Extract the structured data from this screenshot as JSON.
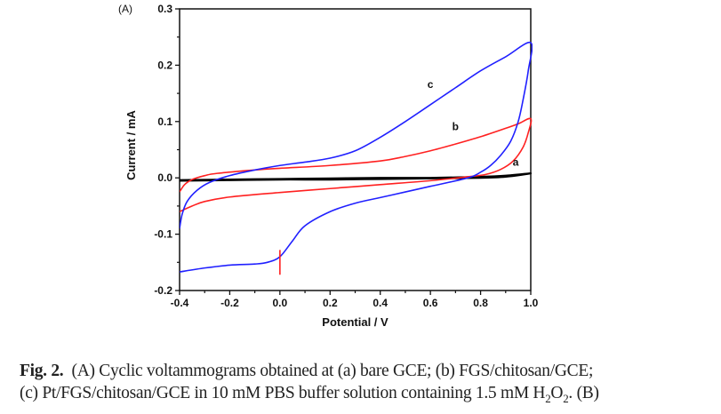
{
  "chart_data": {
    "type": "line",
    "panel_label": "(A)",
    "title": "",
    "xlabel": "Potential / V",
    "ylabel": "Current / mA",
    "xlim": [
      -0.4,
      1.0
    ],
    "ylim": [
      -0.2,
      0.3
    ],
    "xticks": [
      -0.4,
      -0.2,
      0.0,
      0.2,
      0.4,
      0.6,
      0.8,
      1.0
    ],
    "xtick_labels": [
      "-0.4",
      "-0.2",
      "0.0",
      "0.2",
      "0.4",
      "0.6",
      "0.8",
      "1.0"
    ],
    "yticks": [
      -0.2,
      -0.1,
      0.0,
      0.1,
      0.2,
      0.3
    ],
    "ytick_labels": [
      "-0.2",
      "-0.1",
      "0.0",
      "0.1",
      "0.2",
      "0.3"
    ],
    "grid": false,
    "legend": "none",
    "series": [
      {
        "name": "a",
        "label": "a",
        "color": "#000000",
        "label_at": [
          0.94,
          0.022
        ],
        "x": [
          -0.4,
          -0.2,
          0.0,
          0.2,
          0.4,
          0.6,
          0.8,
          0.9,
          1.0,
          0.9,
          0.8,
          0.6,
          0.4,
          0.2,
          0.0,
          -0.2,
          -0.4
        ],
        "y": [
          -0.004,
          -0.003,
          -0.002,
          -0.001,
          0.0,
          0.0,
          0.002,
          0.004,
          0.008,
          0.002,
          0.0,
          -0.001,
          -0.002,
          -0.003,
          -0.003,
          -0.004,
          -0.005
        ]
      },
      {
        "name": "b",
        "label": "b",
        "color": "#ff2020",
        "label_at": [
          0.7,
          0.085
        ],
        "x": [
          -0.4,
          -0.38,
          -0.35,
          -0.3,
          -0.25,
          -0.1,
          0.0,
          0.2,
          0.4,
          0.5,
          0.6,
          0.7,
          0.8,
          0.9,
          0.95,
          1.0,
          0.99,
          0.97,
          0.93,
          0.88,
          0.82,
          0.75,
          0.6,
          0.4,
          0.2,
          0.0,
          -0.2,
          -0.3,
          -0.35,
          -0.4
        ],
        "y": [
          -0.025,
          -0.012,
          -0.003,
          0.004,
          0.008,
          0.014,
          0.017,
          0.022,
          0.03,
          0.038,
          0.048,
          0.06,
          0.073,
          0.088,
          0.096,
          0.105,
          0.08,
          0.055,
          0.03,
          0.015,
          0.006,
          0.002,
          -0.005,
          -0.012,
          -0.019,
          -0.026,
          -0.034,
          -0.042,
          -0.05,
          -0.06
        ]
      },
      {
        "name": "c",
        "label": "c",
        "color": "#2020ff",
        "label_at": [
          0.6,
          0.16
        ],
        "x": [
          -0.4,
          -0.39,
          -0.37,
          -0.33,
          -0.28,
          -0.2,
          -0.1,
          0.0,
          0.1,
          0.2,
          0.3,
          0.4,
          0.5,
          0.6,
          0.7,
          0.8,
          0.9,
          1.0,
          0.99,
          0.97,
          0.95,
          0.92,
          0.88,
          0.84,
          0.8,
          0.75,
          0.6,
          0.5,
          0.4,
          0.3,
          0.2,
          0.1,
          0.05,
          0.0,
          -0.05,
          -0.1,
          -0.2,
          -0.3,
          -0.4
        ],
        "y": [
          -0.09,
          -0.065,
          -0.042,
          -0.022,
          -0.008,
          0.004,
          0.014,
          0.022,
          0.028,
          0.035,
          0.048,
          0.072,
          0.1,
          0.13,
          0.16,
          0.19,
          0.215,
          0.24,
          0.19,
          0.14,
          0.1,
          0.065,
          0.04,
          0.022,
          0.01,
          0.0,
          -0.015,
          -0.025,
          -0.035,
          -0.045,
          -0.06,
          -0.085,
          -0.112,
          -0.14,
          -0.15,
          -0.153,
          -0.155,
          -0.16,
          -0.167
        ]
      }
    ],
    "annotations": [
      {
        "type": "vertical-marker",
        "x": 0.0,
        "y_from": -0.172,
        "y_to": -0.128,
        "color": "#ff2020"
      }
    ]
  },
  "caption": {
    "fig_label": "Fig. 2.",
    "line1": "(A) Cyclic voltammograms obtained at (a) bare GCE; (b) FGS/chitosan/GCE;",
    "line2_pre": "(c) Pt/FGS/chitosan/GCE in 10 mM PBS buffer solution containing 1.5 mM H",
    "sub1": "2",
    "mid": "O",
    "sub2": "2",
    "line2_post": ". (B)"
  }
}
